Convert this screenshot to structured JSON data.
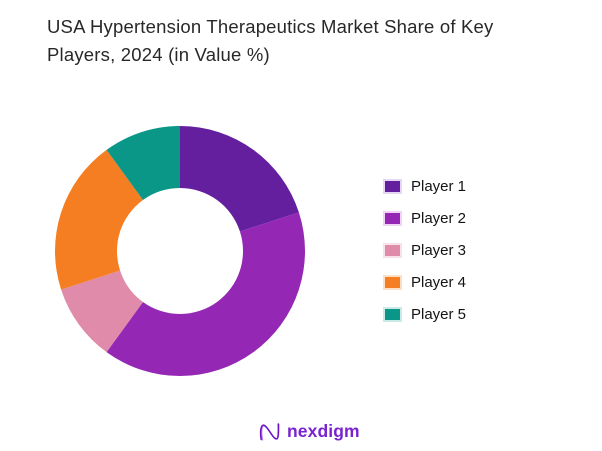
{
  "page": {
    "background_color": "#ffffff"
  },
  "title": {
    "text": "USA Hypertension Therapeutics Market Share of Key Players, 2024 (in Value %)",
    "lines": [
      "USA Hypertension Therapeutics Market Share of Key",
      "Players, 2024 (in Value %)"
    ],
    "color": "#282828"
  },
  "chart_data": {
    "type": "pie",
    "subtype": "donut",
    "title": "USA Hypertension Therapeutics Market Share of Key Players, 2024 (in Value %)",
    "unit": "value %",
    "start_angle_deg": 0,
    "direction": "clockwise",
    "inner_radius_ratio": 0.504,
    "legend_position": "right",
    "legend_text_color": "#141414",
    "series": [
      {
        "name": "Player 1",
        "value": 20,
        "color": "#641f9e",
        "swatch_border": "#e5d6f3"
      },
      {
        "name": "Player 2",
        "value": 40,
        "color": "#9428b4",
        "swatch_border": "#f0d4f6"
      },
      {
        "name": "Player 3",
        "value": 10,
        "color": "#df8ba9",
        "swatch_border": "#f8e2ea"
      },
      {
        "name": "Player 4",
        "value": 20,
        "color": "#f57d22",
        "swatch_border": "#fcdfc6"
      },
      {
        "name": "Player 5",
        "value": 10,
        "color": "#0a9788",
        "swatch_border": "#c9eae6"
      }
    ]
  },
  "logo": {
    "text": "nexdigm",
    "text_color": "#7b22cf",
    "mark_colors": [
      "#b47ae8",
      "#6d14c4"
    ]
  }
}
